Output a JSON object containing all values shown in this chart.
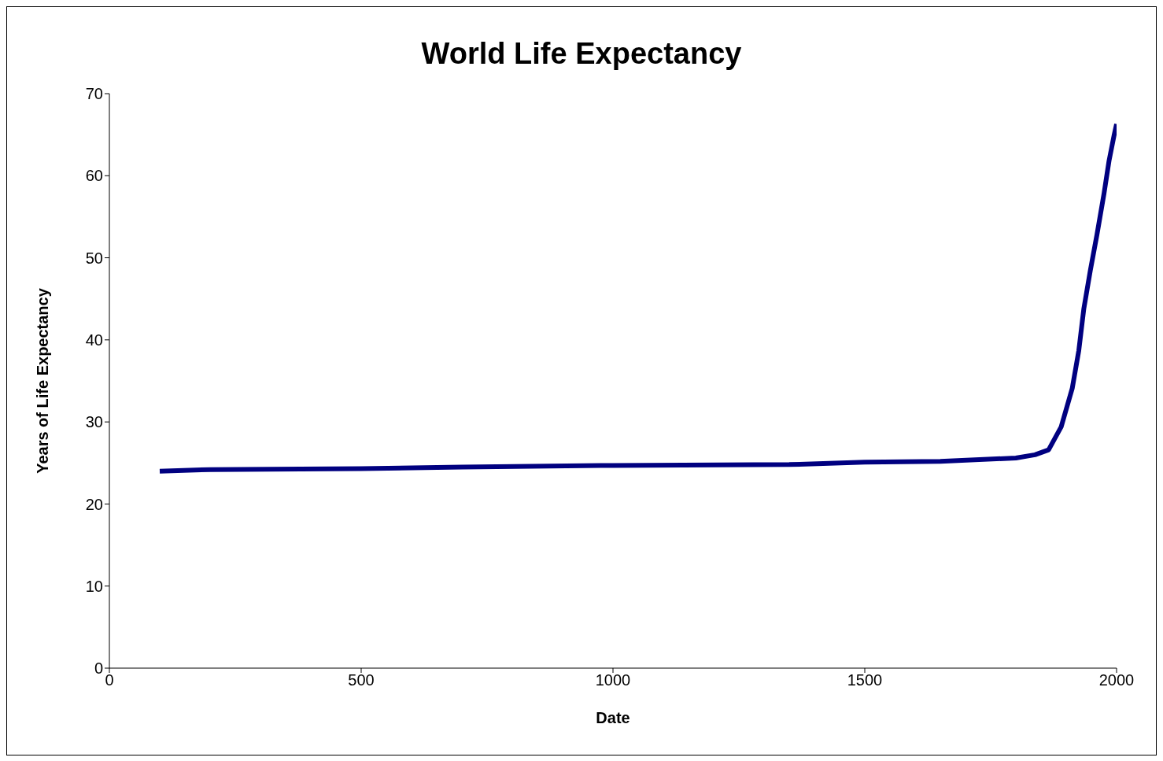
{
  "chart_data": {
    "type": "line",
    "title": "World Life Expectancy",
    "xlabel": "Date",
    "ylabel": "Years of Life Expectancy",
    "x": [
      100,
      200,
      500,
      700,
      1000,
      1350,
      1500,
      1650,
      1800,
      1838,
      1865,
      1890,
      1912,
      1925,
      1935,
      1948,
      1961,
      1975,
      1985,
      1995,
      2000
    ],
    "series": [
      {
        "color": "#000080",
        "values": [
          24,
          24.2,
          24.3,
          24.5,
          24.7,
          24.8,
          25.1,
          25.2,
          25.6,
          26,
          26.6,
          29.4,
          34.1,
          38.7,
          43.8,
          48.5,
          52.8,
          57.8,
          61.8,
          64.9,
          66.3
        ]
      }
    ],
    "xlim": [
      0,
      2000
    ],
    "xticks": [
      0,
      500,
      1000,
      1500,
      2000
    ],
    "ylim": [
      0,
      70
    ],
    "yticks": [
      0,
      10,
      20,
      30,
      40,
      50,
      60,
      70
    ],
    "grid": false,
    "legend": false,
    "marker": "none",
    "line_style": "solid"
  }
}
